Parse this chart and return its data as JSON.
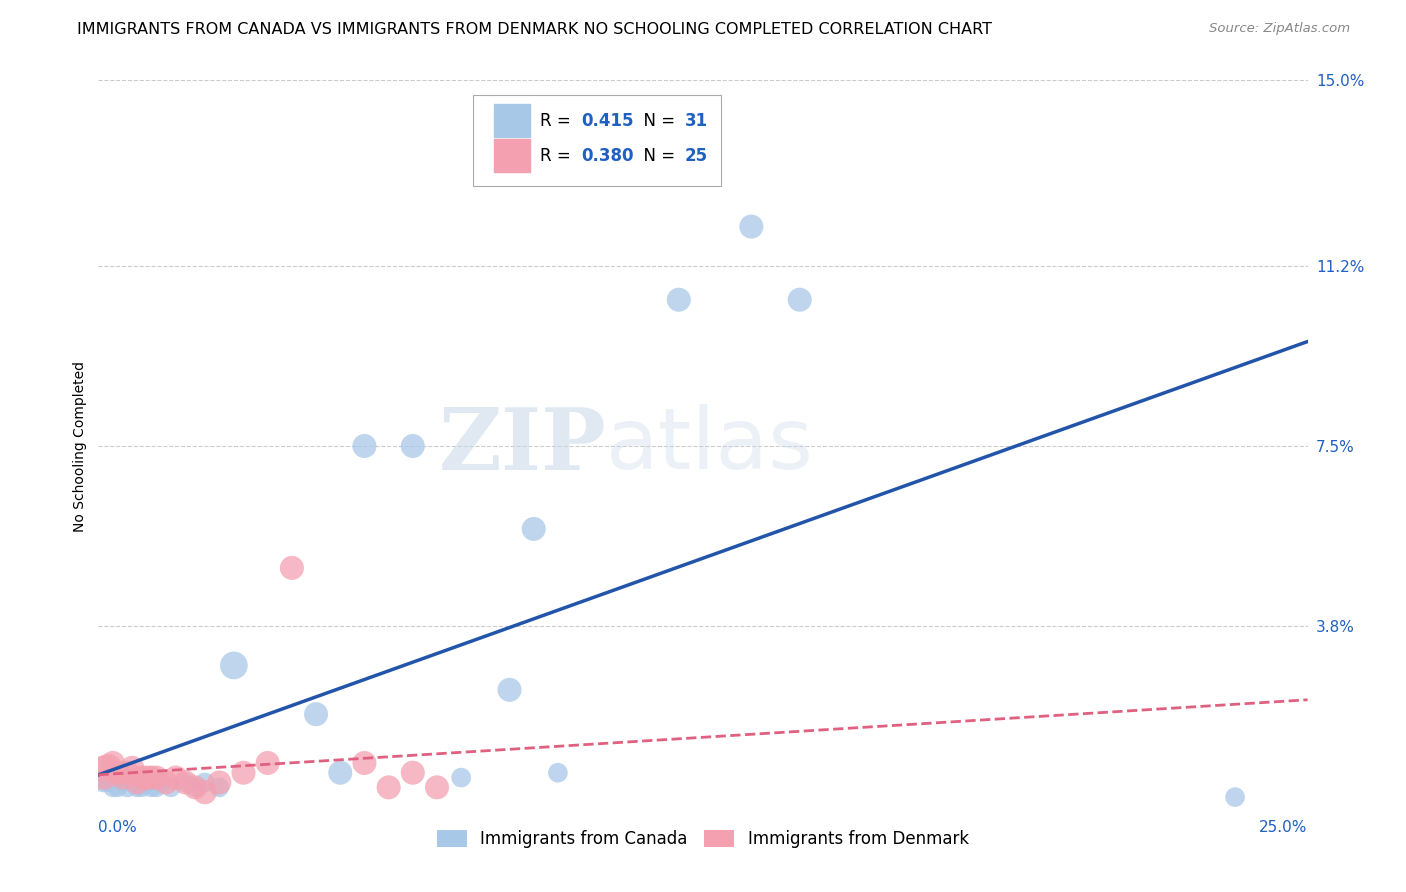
{
  "title": "IMMIGRANTS FROM CANADA VS IMMIGRANTS FROM DENMARK NO SCHOOLING COMPLETED CORRELATION CHART",
  "source": "Source: ZipAtlas.com",
  "ylabel": "No Schooling Completed",
  "xlim": [
    0,
    0.25
  ],
  "ylim": [
    0,
    0.15
  ],
  "yticks": [
    0.038,
    0.075,
    0.112,
    0.15
  ],
  "ytick_labels": [
    "3.8%",
    "7.5%",
    "11.2%",
    "15.0%"
  ],
  "xtick_left_label": "0.0%",
  "xtick_right_label": "25.0%",
  "canada_R": 0.415,
  "canada_N": 31,
  "denmark_R": 0.38,
  "denmark_N": 25,
  "canada_color": "#a8c8e8",
  "denmark_color": "#f4a0b0",
  "trendline_canada_color": "#2255aa",
  "trendline_denmark_color": "#e06080",
  "background_color": "#ffffff",
  "grid_color": "#cccccc",
  "canada_x": [
    0.001,
    0.002,
    0.003,
    0.004,
    0.005,
    0.006,
    0.007,
    0.008,
    0.009,
    0.01,
    0.011,
    0.012,
    0.013,
    0.015,
    0.018,
    0.02,
    0.022,
    0.025,
    0.028,
    0.045,
    0.05,
    0.055,
    0.065,
    0.075,
    0.085,
    0.09,
    0.095,
    0.12,
    0.135,
    0.145,
    0.235
  ],
  "canada_y": [
    0.006,
    0.006,
    0.005,
    0.005,
    0.006,
    0.005,
    0.006,
    0.005,
    0.005,
    0.006,
    0.005,
    0.005,
    0.006,
    0.005,
    0.006,
    0.005,
    0.006,
    0.005,
    0.03,
    0.02,
    0.008,
    0.075,
    0.075,
    0.007,
    0.025,
    0.058,
    0.008,
    0.105,
    0.12,
    0.105,
    0.003
  ],
  "canada_sizes": [
    200,
    200,
    200,
    200,
    200,
    200,
    200,
    200,
    200,
    200,
    200,
    200,
    200,
    200,
    200,
    200,
    200,
    200,
    400,
    300,
    300,
    300,
    300,
    200,
    300,
    300,
    200,
    300,
    300,
    300,
    200
  ],
  "denmark_x": [
    0.001,
    0.002,
    0.003,
    0.004,
    0.005,
    0.006,
    0.007,
    0.008,
    0.009,
    0.01,
    0.011,
    0.012,
    0.014,
    0.016,
    0.018,
    0.02,
    0.022,
    0.025,
    0.03,
    0.035,
    0.04,
    0.055,
    0.06,
    0.065,
    0.07
  ],
  "denmark_y": [
    0.008,
    0.009,
    0.01,
    0.008,
    0.007,
    0.008,
    0.009,
    0.006,
    0.007,
    0.007,
    0.007,
    0.007,
    0.006,
    0.007,
    0.006,
    0.005,
    0.004,
    0.006,
    0.008,
    0.01,
    0.05,
    0.01,
    0.005,
    0.008,
    0.005
  ],
  "denmark_sizes": [
    600,
    400,
    300,
    300,
    300,
    300,
    300,
    300,
    300,
    300,
    300,
    300,
    300,
    300,
    300,
    300,
    300,
    300,
    300,
    300,
    300,
    300,
    300,
    300,
    300
  ],
  "watermark_zip": "ZIP",
  "watermark_atlas": "atlas",
  "title_fontsize": 11.5,
  "axis_label_fontsize": 10,
  "tick_fontsize": 11,
  "legend_fontsize": 12
}
